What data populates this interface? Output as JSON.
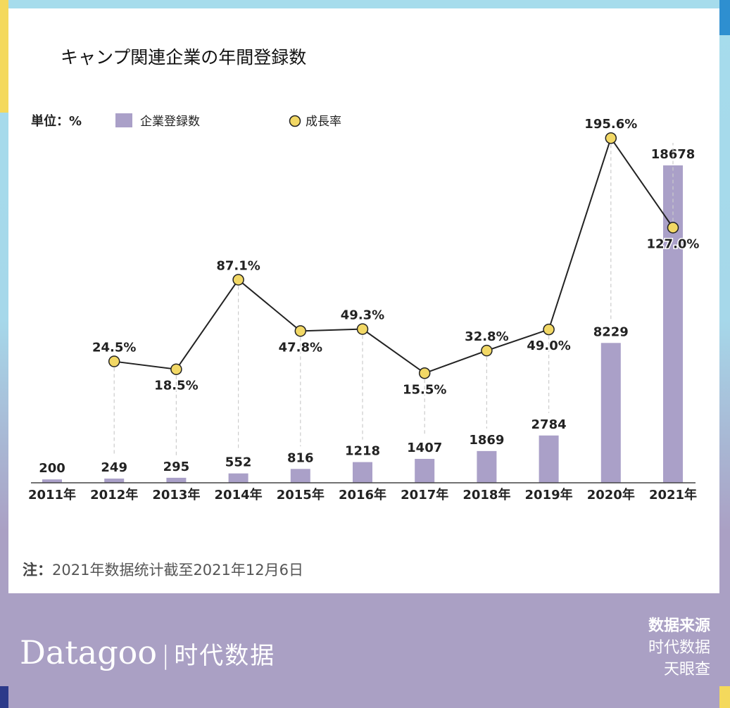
{
  "chart_data": {
    "type": "bar+line",
    "title": "キャンプ関連企業の年間登録数",
    "unit_label": "単位：%",
    "categories": [
      "2011年",
      "2012年",
      "2013年",
      "2014年",
      "2015年",
      "2016年",
      "2017年",
      "2018年",
      "2019年",
      "2020年",
      "2021年"
    ],
    "series": [
      {
        "name": "企業登録数",
        "type": "bar",
        "color": "#aaa0c8",
        "values": [
          200,
          249,
          295,
          552,
          816,
          1218,
          1407,
          1869,
          2784,
          8229,
          18678
        ],
        "labels": [
          "200",
          "249",
          "295",
          "552",
          "816",
          "1218",
          "1407",
          "1869",
          "2784",
          "8229",
          "18678"
        ]
      },
      {
        "name": "成長率",
        "type": "line",
        "color": "#f2d865",
        "values": [
          null,
          24.5,
          18.5,
          87.1,
          47.8,
          49.3,
          15.5,
          32.8,
          49.0,
          195.6,
          127.0
        ],
        "labels": [
          "",
          "24.5%",
          "18.5%",
          "87.1%",
          "47.8%",
          "49.3%",
          "15.5%",
          "32.8%",
          "49.0%",
          "195.6%",
          "127.0%"
        ],
        "label_pos": [
          "",
          "above",
          "below",
          "above",
          "below",
          "above",
          "below",
          "above",
          "below",
          "above",
          "below"
        ]
      }
    ],
    "legend_placement": "top-left",
    "grid": false
  },
  "note": {
    "label": "注：",
    "text": "2021年数据统计截至2021年12月6日"
  },
  "footer": {
    "logo": "Datagoo",
    "logo_sep": "|",
    "logo_cn": "时代数据",
    "source_title": "数据来源",
    "sources": [
      "时代数据",
      "天眼查"
    ]
  }
}
